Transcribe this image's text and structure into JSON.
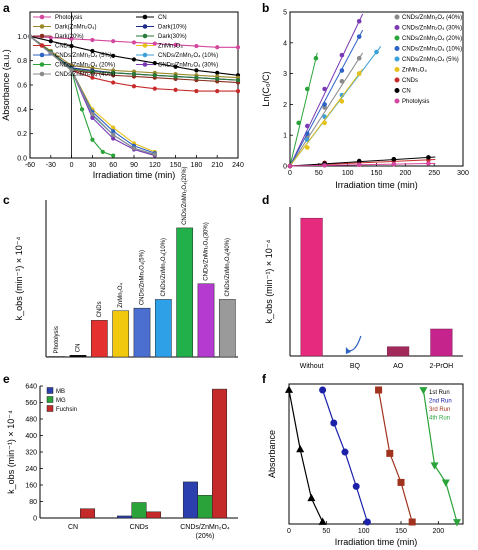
{
  "chart_data": [
    {
      "panel_label": "a",
      "type": "line",
      "xlabel": "Irradiation time (min)",
      "ylabel": "Absorbance (a.u.)",
      "x_ticks": [
        "-60",
        "-30",
        "0",
        "30",
        "60",
        "90",
        "120",
        "150",
        "180",
        "210",
        "240"
      ],
      "y_ticks": [
        "0.0",
        "0.2",
        "0.4",
        "0.6",
        "0.8",
        "1.0"
      ],
      "xlim": [
        -60,
        240
      ],
      "ylim": [
        0,
        1.2
      ],
      "legend": "top",
      "series": [
        {
          "name": "Photolysis",
          "color": "#d4479e",
          "marker": "circle",
          "x": [
            -60,
            -30,
            0,
            30,
            60,
            90,
            120,
            150,
            180,
            210,
            240
          ],
          "y": [
            1.0,
            0.99,
            0.98,
            0.97,
            0.96,
            0.95,
            0.94,
            0.93,
            0.92,
            0.91,
            0.91
          ]
        },
        {
          "name": "CN",
          "color": "#000000",
          "marker": "circle",
          "x": [
            -60,
            -30,
            0,
            30,
            60,
            90,
            120,
            150,
            180,
            210,
            240
          ],
          "y": [
            1.0,
            0.96,
            0.92,
            0.88,
            0.84,
            0.81,
            0.78,
            0.75,
            0.72,
            0.7,
            0.68
          ]
        },
        {
          "name": "Dark(ZnMn₂O₄)",
          "color": "#9c8a2a",
          "marker": "circle",
          "x": [
            -60,
            -30,
            0,
            30,
            60,
            90,
            120,
            150,
            180,
            210,
            240
          ],
          "y": [
            1.0,
            0.88,
            0.76,
            0.74,
            0.72,
            0.71,
            0.7,
            0.69,
            0.68,
            0.67,
            0.66
          ]
        },
        {
          "name": "Dark(10%)",
          "color": "#1f2a8a",
          "marker": "circle",
          "x": [
            -60,
            -30,
            0,
            30,
            60,
            90,
            120,
            150,
            180,
            210,
            240
          ],
          "y": [
            1.0,
            0.87,
            0.74,
            0.72,
            0.7,
            0.69,
            0.68,
            0.67,
            0.66,
            0.65,
            0.64
          ]
        },
        {
          "name": "Dark(20%)",
          "color": "#8a2e1e",
          "marker": "circle",
          "x": [
            -60,
            -30,
            0,
            30,
            60,
            90,
            120,
            150,
            180,
            210,
            240
          ],
          "y": [
            1.0,
            0.86,
            0.72,
            0.7,
            0.68,
            0.67,
            0.66,
            0.65,
            0.64,
            0.63,
            0.62
          ]
        },
        {
          "name": "Dark(30%)",
          "color": "#2a7a3a",
          "marker": "circle",
          "x": [
            -60,
            -30,
            0,
            30,
            60,
            90,
            120,
            150,
            180,
            210,
            240
          ],
          "y": [
            1.0,
            0.87,
            0.73,
            0.71,
            0.7,
            0.69,
            0.68,
            0.67,
            0.66,
            0.65,
            0.64
          ]
        },
        {
          "name": "CNDs",
          "color": "#c72a2a",
          "marker": "circle",
          "x": [
            -60,
            -30,
            0,
            30,
            60,
            90,
            120,
            150,
            180,
            210,
            240
          ],
          "y": [
            1.0,
            0.86,
            0.72,
            0.66,
            0.62,
            0.59,
            0.57,
            0.56,
            0.55,
            0.55,
            0.55
          ]
        },
        {
          "name": "ZnMn₂O₄",
          "color": "#e6c21a",
          "marker": "circle",
          "x": [
            -60,
            -30,
            0,
            30,
            60,
            90,
            120
          ],
          "y": [
            1.0,
            0.86,
            0.72,
            0.4,
            0.25,
            0.12,
            0.05
          ]
        },
        {
          "name": "CNDs/ZnMn₂O₄ (5%)",
          "color": "#2e62c4",
          "marker": "circle",
          "x": [
            -60,
            -30,
            0,
            30,
            60,
            90,
            120
          ],
          "y": [
            1.0,
            0.86,
            0.72,
            0.38,
            0.22,
            0.1,
            0.04
          ]
        },
        {
          "name": "CNDs/ZnMn₂O₄ (10%)",
          "color": "#3aa0d8",
          "marker": "circle",
          "x": [
            -60,
            -30,
            0,
            30,
            60,
            90,
            120
          ],
          "y": [
            1.0,
            0.86,
            0.72,
            0.35,
            0.19,
            0.08,
            0.03
          ]
        },
        {
          "name": "CNDs/ZnMn₂O₄ (20%)",
          "color": "#2aa33a",
          "marker": "circle",
          "x": [
            -60,
            -30,
            0,
            15,
            30,
            45,
            60
          ],
          "y": [
            1.0,
            0.86,
            0.72,
            0.4,
            0.15,
            0.05,
            0.02
          ]
        },
        {
          "name": "CNDs/ZnMn₂O₄ (30%)",
          "color": "#7a3ab4",
          "marker": "circle",
          "x": [
            -60,
            -30,
            0,
            30,
            60,
            90,
            120
          ],
          "y": [
            1.0,
            0.86,
            0.72,
            0.33,
            0.16,
            0.07,
            0.02
          ]
        },
        {
          "name": "CNDs/ZnMn₂O₄ (40%)",
          "color": "#8a8a8a",
          "marker": "circle",
          "x": [
            -60,
            -30,
            0,
            30,
            60,
            90,
            120
          ],
          "y": [
            1.0,
            0.86,
            0.72,
            0.36,
            0.19,
            0.08,
            0.03
          ]
        }
      ]
    },
    {
      "panel_label": "b",
      "type": "scatter",
      "xlabel": "Irradiation time (min)",
      "ylabel": "Ln(C₀/C)",
      "x_ticks": [
        "0",
        "50",
        "100",
        "150",
        "200",
        "250",
        "300"
      ],
      "y_ticks": [
        "0",
        "1",
        "2",
        "3",
        "4",
        "5"
      ],
      "xlim": [
        0,
        300
      ],
      "ylim": [
        0,
        5
      ],
      "legend": "top-right",
      "series": [
        {
          "name": "CNDs/ZnMn₂O₄ (40%)",
          "color": "#8a8a8a",
          "x": [
            0,
            30,
            60,
            90,
            120
          ],
          "y": [
            0,
            0.95,
            1.9,
            2.75,
            3.5
          ]
        },
        {
          "name": "CNDs/ZnMn₂O₄ (30%)",
          "color": "#7a3ab4",
          "x": [
            0,
            30,
            60,
            90,
            120
          ],
          "y": [
            0,
            1.3,
            2.5,
            3.6,
            4.7
          ]
        },
        {
          "name": "CNDs/ZnMn₂O₄ (20%)",
          "color": "#2aa33a",
          "x": [
            0,
            15,
            30,
            45
          ],
          "y": [
            0,
            1.4,
            2.5,
            3.5
          ]
        },
        {
          "name": "CNDs/ZnMn₂O₄ (10%)",
          "color": "#2e62c4",
          "x": [
            0,
            30,
            60,
            90,
            120
          ],
          "y": [
            0,
            1.05,
            2.0,
            3.1,
            4.2
          ]
        },
        {
          "name": "CNDs/ZnMn₂O₄ (5%)",
          "color": "#3aa0d8",
          "x": [
            0,
            30,
            60,
            90,
            120,
            150
          ],
          "y": [
            0,
            0.85,
            1.6,
            2.3,
            3.0,
            3.7
          ]
        },
        {
          "name": "ZnMn₂O₄",
          "color": "#e6c21a",
          "x": [
            0,
            30,
            60,
            90,
            120
          ],
          "y": [
            0,
            0.6,
            1.4,
            2.1,
            3.0
          ]
        },
        {
          "name": "CNDs",
          "color": "#c72a2a",
          "x": [
            0,
            60,
            120,
            180,
            240
          ],
          "y": [
            0,
            0.1,
            0.13,
            0.17,
            0.2
          ]
        },
        {
          "name": "CN",
          "color": "#000000",
          "x": [
            0,
            60,
            120,
            180,
            240
          ],
          "y": [
            0,
            0.08,
            0.16,
            0.22,
            0.28
          ]
        },
        {
          "name": "Photolysis",
          "color": "#d4479e",
          "x": [
            0,
            60,
            120,
            180,
            240
          ],
          "y": [
            0,
            0.02,
            0.04,
            0.06,
            0.08
          ]
        }
      ]
    },
    {
      "panel_label": "c",
      "type": "bar",
      "ylabel": "k_obs (min⁻¹) × 10⁻⁴",
      "ylim": [
        0,
        900
      ],
      "categories": [
        "Photolysis",
        "CN",
        "CNDs",
        "ZnMn₂O₄",
        "CNDs/ZnMn₂O₄(5%)",
        "CNDs/ZnMn₂O₄(10%)",
        "CNDs/ZnMn₂O₄(20%)",
        "CNDs/ZnMn₂O₄(30%)",
        "CNDs/ZnMn₂O₄(40%)"
      ],
      "values": [
        3,
        10,
        210,
        265,
        280,
        330,
        740,
        420,
        330
      ],
      "colors": [
        "#d4479e",
        "#000000",
        "#e53030",
        "#f2c80f",
        "#4a6fd0",
        "#2ea0e8",
        "#22b04a",
        "#b43ad0",
        "#9a9a9a"
      ]
    },
    {
      "panel_label": "d",
      "type": "bar",
      "ylabel": "k_obs (min⁻¹) × 10⁻⁴",
      "ylim": [
        0,
        800
      ],
      "categories": [
        "Without",
        "BQ",
        "AO",
        "2-PrOH"
      ],
      "values": [
        740,
        0,
        50,
        145
      ],
      "colors": [
        "#e62a7d",
        "#e62a7d",
        "#a22a5a",
        "#c4248c"
      ]
    },
    {
      "panel_label": "e",
      "type": "bar",
      "ylabel": "k_obs (min⁻¹) × 10⁻⁴",
      "ylim": [
        0,
        640
      ],
      "y_ticks": [
        "0",
        "80",
        "160",
        "240",
        "320",
        "400",
        "480",
        "560",
        "640"
      ],
      "categories": [
        "CN",
        "CNDs",
        "CNDs/ZnMn₂O₄\n(20%)"
      ],
      "legend": "top-left",
      "series": [
        {
          "name": "MB",
          "color": "#2b3fae",
          "values": [
            0,
            10,
            175
          ]
        },
        {
          "name": "MG",
          "color": "#2aa33a",
          "values": [
            0,
            75,
            110
          ]
        },
        {
          "name": "Fuchsin",
          "color": "#c42a2a",
          "values": [
            45,
            30,
            625
          ]
        }
      ]
    },
    {
      "panel_label": "f",
      "type": "line",
      "xlabel": "Irradiation time (min)",
      "ylabel": "Absorbance",
      "x_ticks": [
        "0",
        "50",
        "100",
        "150",
        "200"
      ],
      "xlim": [
        0,
        225
      ],
      "ylim": [
        0,
        1
      ],
      "legend": "top-right",
      "series": [
        {
          "name": "1st Run",
          "color": "#000000",
          "marker": "triangle",
          "x": [
            0,
            15,
            30,
            45
          ],
          "y": [
            1.0,
            0.55,
            0.18,
            0.0
          ]
        },
        {
          "name": "2nd Run",
          "color": "#1c22a8",
          "marker": "circle",
          "x": [
            45,
            60,
            75,
            90,
            105
          ],
          "y": [
            1.0,
            0.75,
            0.53,
            0.27,
            0.0
          ]
        },
        {
          "name": "3rd Run",
          "color": "#a0331e",
          "marker": "square",
          "x": [
            120,
            135,
            150,
            165
          ],
          "y": [
            1.0,
            0.52,
            0.3,
            0.0
          ]
        },
        {
          "name": "4th Run",
          "color": "#2aa33a",
          "marker": "triangle-down",
          "x": [
            180,
            195,
            210,
            225
          ],
          "y": [
            1.0,
            0.43,
            0.3,
            0.0
          ]
        }
      ]
    }
  ]
}
